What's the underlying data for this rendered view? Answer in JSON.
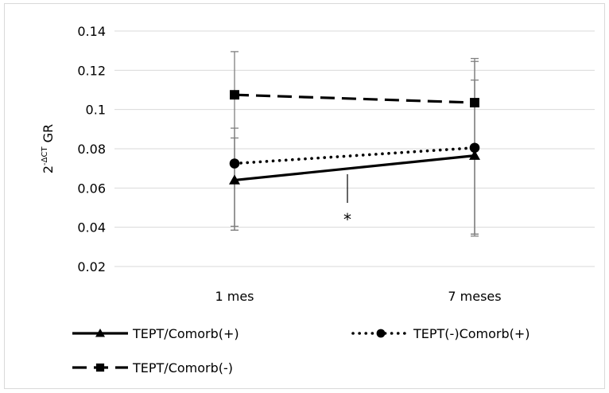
{
  "chart_data": {
    "type": "line",
    "categories": [
      "1 mes",
      "7 meses"
    ],
    "ylabel_base": "2",
    "ylabel_sup": "-ΔCT",
    "ylabel_rest": " GR",
    "ylim": [
      0.02,
      0.14
    ],
    "yticks": [
      0.02,
      0.04,
      0.06,
      0.08,
      0.1,
      0.12,
      0.14
    ],
    "ytick_labels": [
      "0.02",
      "0.04",
      "0.06",
      "0.08",
      "0.1",
      "0.12",
      "0.14"
    ],
    "grid": true,
    "legend_position": "bottom",
    "series": [
      {
        "name": "TEPT/Comorb(+)",
        "values": [
          0.064,
          0.0765
        ],
        "error_upper": [
          0.0905,
          0.1245
        ],
        "error_lower": [
          0.0385,
          0.0365
        ],
        "line_style": "solid",
        "marker": "triangle",
        "color": "#000000"
      },
      {
        "name": "TEPT(-)Comorb(+)",
        "values": [
          0.0725,
          0.0805
        ],
        "error_upper": [
          0.0855,
          0.115
        ],
        "error_lower": [
          0.0405,
          0.0355
        ],
        "line_style": "dotted",
        "marker": "circle",
        "color": "#000000"
      },
      {
        "name": "TEPT/Comorb(-)",
        "values": [
          0.1075,
          0.1035
        ],
        "error_upper": [
          0.1295,
          0.126
        ],
        "error_lower": [
          0.0385,
          0.0365
        ],
        "line_style": "dashed",
        "marker": "square",
        "color": "#000000"
      }
    ],
    "annotation": "*",
    "error_bar_color": "#808080",
    "grid_color": "#d9d9d9"
  }
}
